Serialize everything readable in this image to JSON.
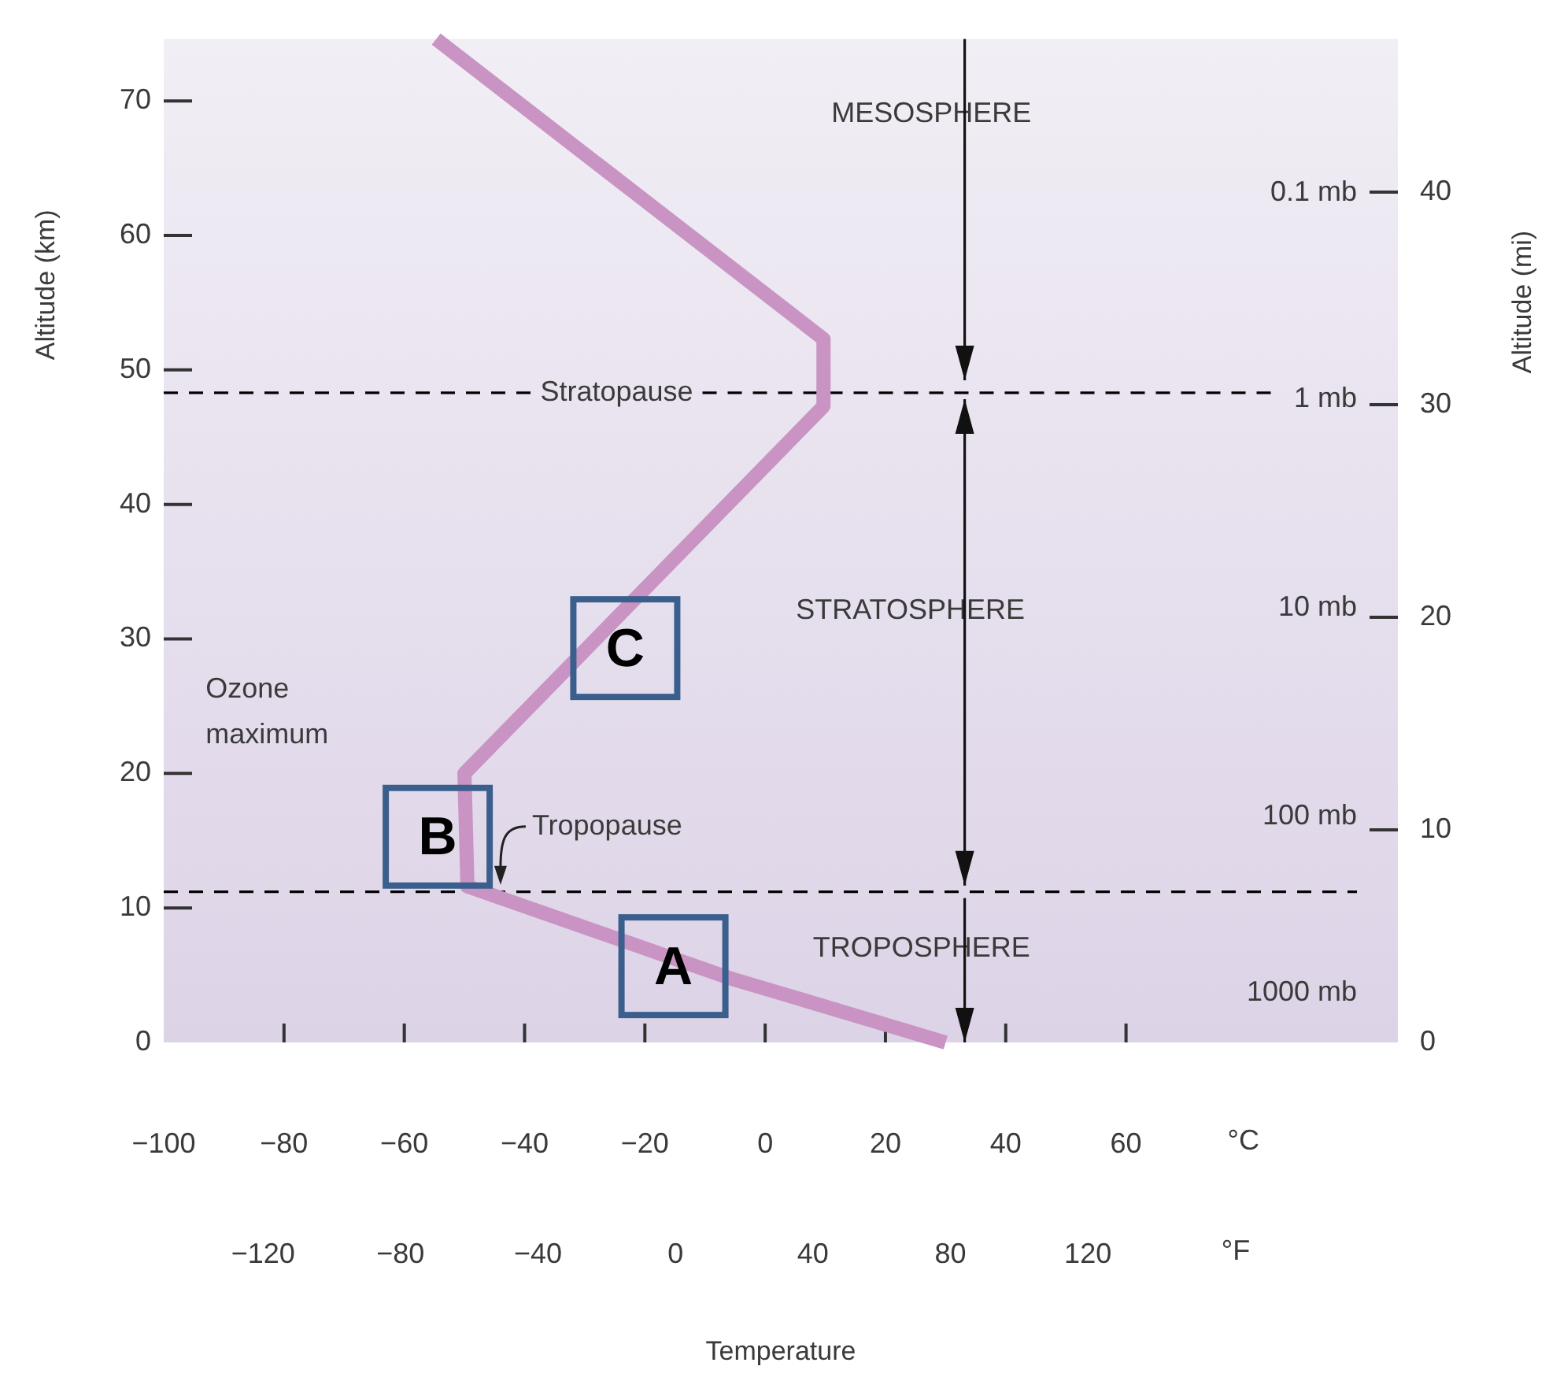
{
  "chart_data": {
    "type": "line",
    "xlabel": "Temperature",
    "ylabel": "Altitude (km)",
    "y2label": "Altitude (mi)",
    "x": [
      30,
      -6,
      -49.5,
      -50,
      9.7,
      9.7,
      -54.7
    ],
    "values": [
      0,
      4.8,
      11.6,
      20,
      47.3,
      52.3,
      74.6
    ],
    "color": "#c994c3",
    "xlim": [
      -100,
      105.2
    ],
    "xticks": [
      -100,
      -80,
      -60,
      -40,
      -20,
      0,
      20,
      40,
      60
    ],
    "x2lim": [
      -148.9,
      210.2
    ],
    "x2ticks": [
      -120,
      -80,
      -40,
      0,
      40,
      80,
      120
    ],
    "ylim": [
      0,
      74.6
    ],
    "yticks": [
      0,
      10,
      20,
      30,
      40,
      50,
      60,
      70
    ],
    "y2lim": [
      0,
      47.2
    ],
    "y2ticks": [
      0,
      10,
      20,
      30,
      40
    ],
    "ref_lines": [
      {
        "axis": "y",
        "value": 48.3,
        "label": "Stratopause",
        "color": "#000000",
        "line_style": "dashed"
      },
      {
        "axis": "y",
        "value": 11.2,
        "color": "#000000",
        "line_style": "dashed"
      }
    ],
    "annotations": [
      "MESOSPHERE",
      "STRATOSPHERE",
      "TROPOSPHERE",
      "Ozone maximum",
      {
        "text": "Tropopause",
        "x": -44,
        "y": 11.6
      },
      "A",
      "B",
      "C",
      "°C",
      "°F",
      "0.1 mb",
      "1 mb",
      "10 mb",
      "100 mb",
      "1000 mb"
    ],
    "grid": false,
    "legend": false,
    "marker": "none",
    "line_style": "solid"
  }
}
